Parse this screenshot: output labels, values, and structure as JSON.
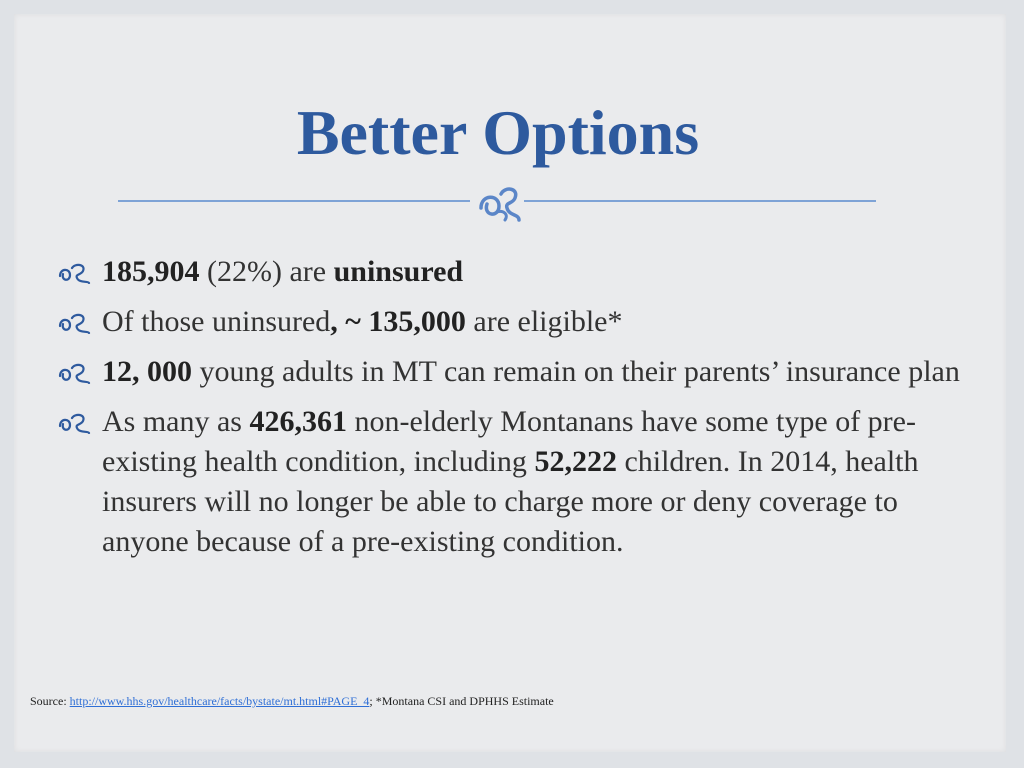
{
  "slide": {
    "title": "Better Options",
    "bullets": [
      {
        "parts": [
          {
            "text": "185,904",
            "bold": true
          },
          {
            "text": " (22%) are ",
            "bold": false
          },
          {
            "text": "uninsured",
            "bold": true
          }
        ]
      },
      {
        "parts": [
          {
            "text": "Of those uninsured",
            "bold": false
          },
          {
            "text": ", ~ 135,000",
            "bold": true
          },
          {
            "text": " are eligible*",
            "bold": false
          }
        ]
      },
      {
        "parts": [
          {
            "text": "12, 000",
            "bold": true
          },
          {
            "text": " young adults in MT can remain on their parents’ insurance plan",
            "bold": false
          }
        ]
      },
      {
        "parts": [
          {
            "text": "As many as ",
            "bold": false
          },
          {
            "text": "426,361",
            "bold": true
          },
          {
            "text": " non-elderly Montanans have some type of pre-existing health condition, including ",
            "bold": false
          },
          {
            "text": "52,222",
            "bold": true
          },
          {
            "text": " children. In 2014, health insurers will no longer be able to charge more or deny coverage to anyone because of a pre-existing condition.",
            "bold": false
          }
        ]
      }
    ],
    "source": {
      "prefix": "Source: ",
      "link_text": "http://www.hhs.gov/healthcare/facts/bystate/mt.html#PAGE_4",
      "suffix": "; *Montana CSI and DPHHS Estimate"
    },
    "colors": {
      "title": "#2e5a9e",
      "accent": "#7ea3d6",
      "ornament": "#5b86c8",
      "link": "#2f6fd6"
    },
    "icons": {
      "divider": "flourish-ornament-icon",
      "bullet": "ornament-bullet-icon"
    }
  }
}
